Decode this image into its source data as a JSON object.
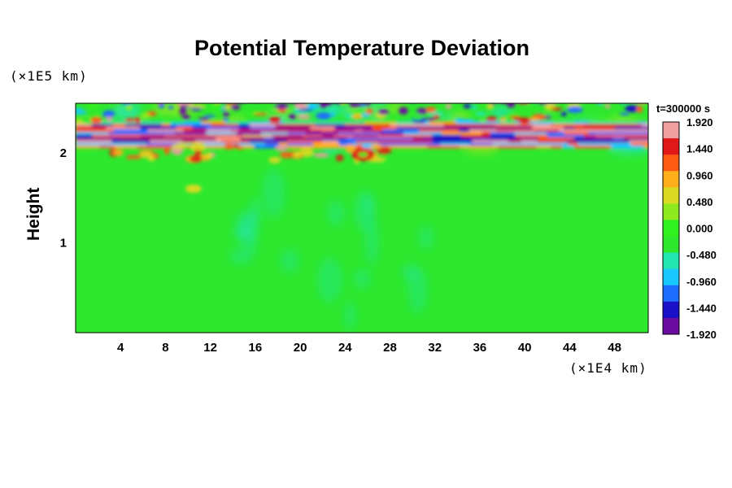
{
  "chart_data": {
    "type": "heatmap",
    "title": "Potential Temperature Deviation",
    "xlabel": "",
    "x_unit": "(×1E4 km)",
    "ylabel": "Height",
    "y_unit": "(×1E5 km)",
    "time_label": "t=300000 s",
    "xlim": [
      0,
      51
    ],
    "ylim": [
      0,
      2.55
    ],
    "x_ticks": [
      4,
      8,
      12,
      16,
      20,
      24,
      28,
      32,
      36,
      40,
      44,
      48
    ],
    "y_ticks": [
      1,
      2
    ],
    "colorbar": {
      "min": -1.92,
      "max": 1.92,
      "tick_values": [
        1.92,
        1.44,
        0.96,
        0.48,
        0.0,
        -0.48,
        -0.96,
        -1.44,
        -1.92
      ],
      "tick_labels": [
        "1.920",
        "1.440",
        "0.960",
        "0.480",
        "0.000",
        "-0.480",
        "-0.960",
        "-1.440",
        "-1.920"
      ]
    },
    "colormap": [
      "#6a0d9e",
      "#1a10c8",
      "#1e6cff",
      "#18c8ff",
      "#22e6b0",
      "#2ee82e",
      "#30f020",
      "#8eea1e",
      "#dada22",
      "#ffae1c",
      "#ff5a14",
      "#e01818",
      "#f0a0a0"
    ],
    "background_color": "#2ee82e"
  }
}
